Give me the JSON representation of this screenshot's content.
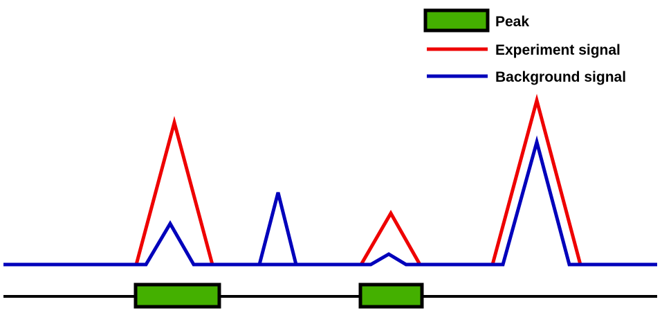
{
  "legend": {
    "items": [
      {
        "label": "Peak",
        "symbol": "box",
        "fill": "#44b000",
        "stroke": "#000000"
      },
      {
        "label": "Experiment signal",
        "symbol": "line",
        "color": "#ee0000"
      },
      {
        "label": "Background signal",
        "symbol": "line",
        "color": "#0000bb"
      }
    ]
  },
  "colors": {
    "experiment": "#ee0000",
    "background": "#0000bb",
    "peak_fill": "#44b000",
    "peak_stroke": "#000000",
    "track": "#000000"
  },
  "signals": {
    "experiment": {
      "label": "Experiment signal",
      "peaks": [
        {
          "id": "exp-peak-1",
          "relative_height": 0.69
        },
        {
          "id": "exp-peak-2",
          "relative_height": 0.0
        },
        {
          "id": "exp-peak-3",
          "relative_height": 0.26
        },
        {
          "id": "exp-peak-4",
          "relative_height": 0.81
        }
      ]
    },
    "background": {
      "label": "Background signal",
      "peaks": [
        {
          "id": "bg-peak-1",
          "relative_height": 0.21
        },
        {
          "id": "bg-peak-2",
          "relative_height": 0.35
        },
        {
          "id": "bg-peak-3",
          "relative_height": 0.06
        },
        {
          "id": "bg-peak-4",
          "relative_height": 0.59
        }
      ]
    }
  },
  "called_peaks": [
    {
      "id": "peak-1",
      "covers_signal_peak": 1
    },
    {
      "id": "peak-2",
      "covers_signal_peak": 3
    }
  ]
}
